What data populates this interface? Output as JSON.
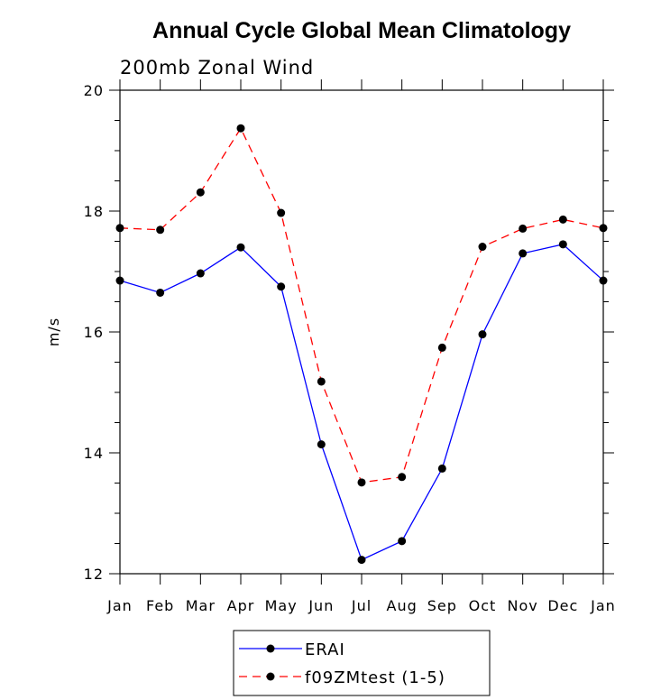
{
  "chart_data": {
    "type": "line",
    "title": "Annual Cycle Global Mean Climatology",
    "subtitle": "200mb Zonal Wind",
    "xlabel": "",
    "ylabel": "m/s",
    "ylim": [
      12,
      20
    ],
    "yticks": [
      12,
      14,
      16,
      18,
      20
    ],
    "categories": [
      "Jan",
      "Feb",
      "Mar",
      "Apr",
      "May",
      "Jun",
      "Jul",
      "Aug",
      "Sep",
      "Oct",
      "Nov",
      "Dec",
      "Jan"
    ],
    "legend_position": "bottom-center",
    "series": [
      {
        "name": "ERAI",
        "color": "#0000ff",
        "dash": "solid",
        "values": [
          16.85,
          16.65,
          16.97,
          17.4,
          16.75,
          14.14,
          12.23,
          12.54,
          13.74,
          15.96,
          17.3,
          17.45,
          16.85
        ]
      },
      {
        "name": "f09ZMtest (1-5)",
        "color": "#ff0000",
        "dash": "dashed",
        "values": [
          17.72,
          17.69,
          18.31,
          19.37,
          17.97,
          15.18,
          13.51,
          13.6,
          15.74,
          17.41,
          17.71,
          17.86,
          17.72
        ]
      }
    ]
  }
}
